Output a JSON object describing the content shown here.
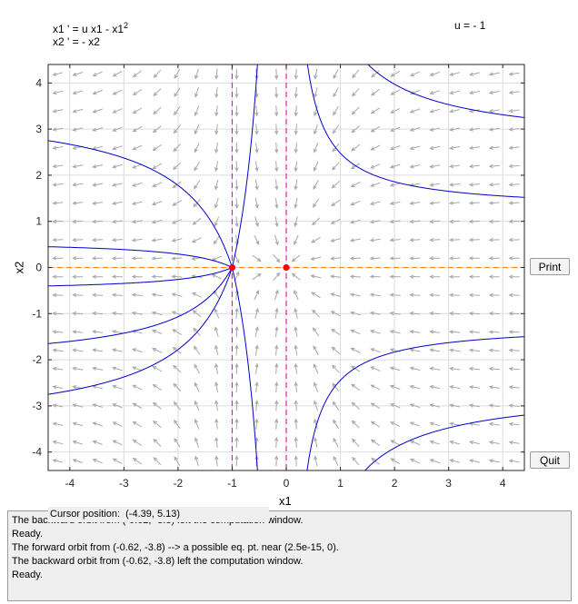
{
  "equations": {
    "line1_main": "x1 ' = u x1 - x1",
    "line1_exp": "2",
    "line2": "x2 ' = - x2"
  },
  "parameter": "u = - 1",
  "axes": {
    "xlabel": "x1",
    "ylabel": "x2",
    "xticks": [
      "-4",
      "-3",
      "-2",
      "-1",
      "0",
      "1",
      "2",
      "3",
      "4"
    ],
    "yticks": [
      "4",
      "3",
      "2",
      "1",
      "0",
      "-1",
      "-2",
      "-3",
      "-4"
    ]
  },
  "buttons": {
    "print": "Print",
    "quit": "Quit"
  },
  "cursor_position": "Cursor position:  (-4.39, 5.13)",
  "messages": [
    "The backward orbit from (-0.62, -3.8) left the computation window.",
    "Ready.",
    "The forward orbit from (-0.62, -3.8) --> a possible eq. pt. near (2.5e-15, 0).",
    "The backward orbit from (-0.62, -3.8) left the computation window.",
    "Ready."
  ],
  "colors": {
    "orbit": "#0000cc",
    "nullcline_vertical": "#dd22aa",
    "nullcline_horizontal": "#ff8800",
    "equilibrium": "#ff0000",
    "field_arrow": "#a8a8a8"
  },
  "chart_data": {
    "type": "phase-portrait",
    "system": "x1' = u x1 - x1^2, x2' = -x2",
    "parameter_u": -1,
    "xlim": [
      -4.4,
      4.4
    ],
    "ylim": [
      -4.4,
      4.4
    ],
    "xlabel": "x1",
    "ylabel": "x2",
    "grid": true,
    "equilibria": [
      [
        -1,
        0
      ],
      [
        0,
        0
      ]
    ],
    "nullclines": {
      "x1_dot_zero": [
        -1,
        0
      ],
      "x2_dot_zero": [
        0
      ]
    },
    "orbit_seeds_at_x1_equal_minus_4_4": [
      2.75,
      0.45,
      -0.4,
      -1.65,
      -2.75
    ],
    "orbit_seeds_at_x1_equal_4_4": [
      3.25,
      1.52,
      -1.5,
      -3.2
    ],
    "orbits_inside_strip": [
      {
        "x2_at_x1_equal_minus_0_5": 5
      },
      {
        "x2_at_x1_equal_minus_0_5": -5
      }
    ]
  }
}
